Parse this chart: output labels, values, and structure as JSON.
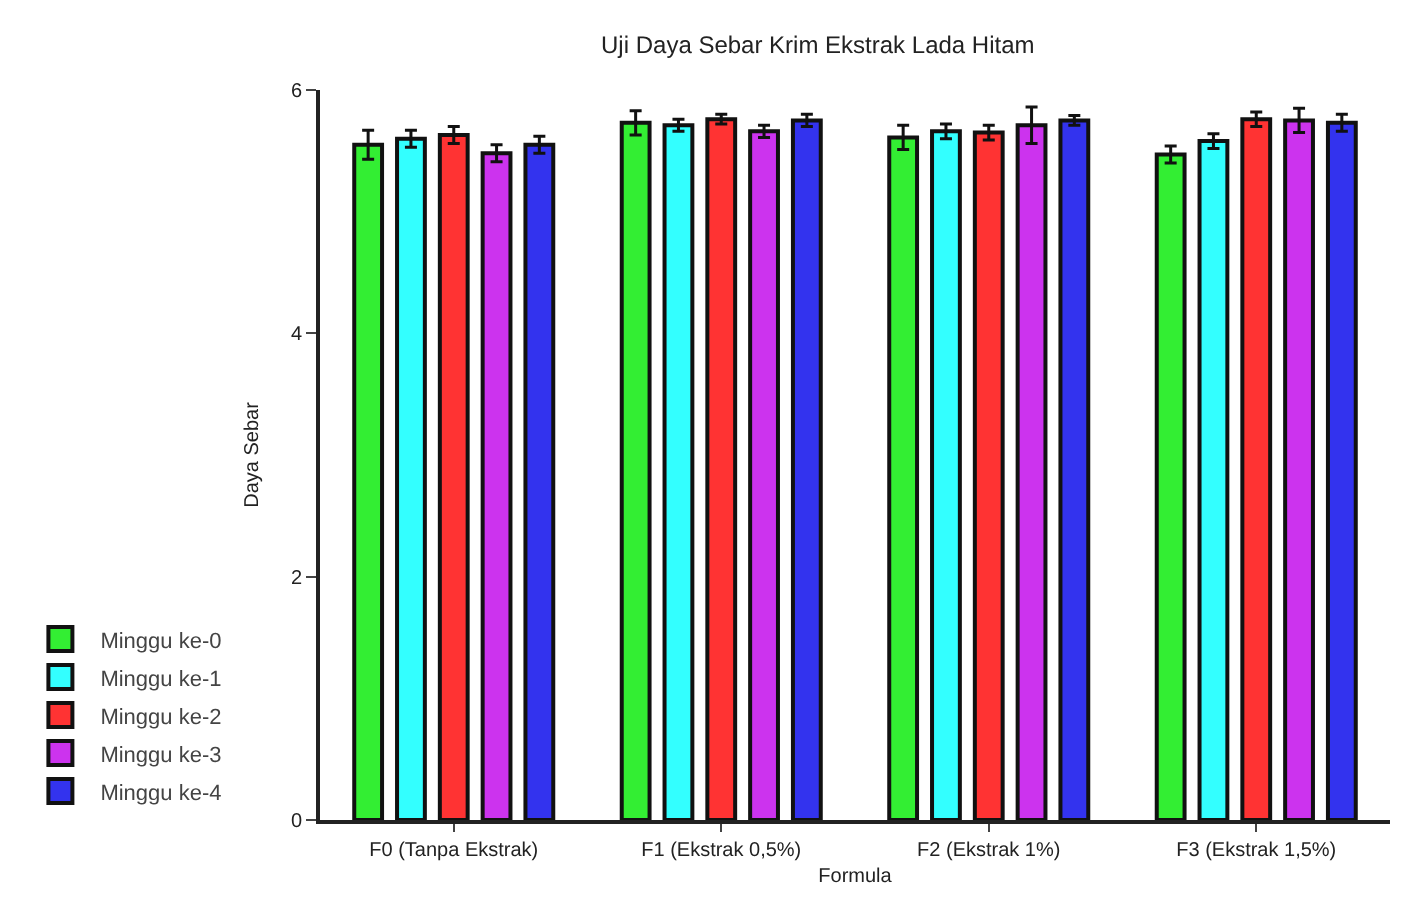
{
  "chart_data": {
    "type": "bar",
    "title": "Uji Daya Sebar Krim Ekstrak Lada Hitam",
    "xlabel": "Formula",
    "ylabel": "Daya Sebar",
    "categories": [
      "F0 (Tanpa Ekstrak)",
      "F1 (Ekstrak 0,5%)",
      "F2 (Ekstrak 1%)",
      "F3 (Ekstrak 1,5%)"
    ],
    "series": [
      {
        "name": "Minggu ke-0",
        "color": "#33ee33",
        "values": [
          5.55,
          5.73,
          5.61,
          5.47
        ],
        "errors": [
          0.12,
          0.1,
          0.1,
          0.07
        ]
      },
      {
        "name": "Minggu ke-1",
        "color": "#33ffff",
        "values": [
          5.6,
          5.71,
          5.66,
          5.58
        ],
        "errors": [
          0.07,
          0.05,
          0.06,
          0.06
        ]
      },
      {
        "name": "Minggu ke-2",
        "color": "#ff3333",
        "values": [
          5.63,
          5.76,
          5.65,
          5.76
        ],
        "errors": [
          0.07,
          0.04,
          0.06,
          0.06
        ]
      },
      {
        "name": "Minggu ke-3",
        "color": "#cc33ee",
        "values": [
          5.48,
          5.66,
          5.71,
          5.75
        ],
        "errors": [
          0.07,
          0.05,
          0.15,
          0.1
        ]
      },
      {
        "name": "Minggu ke-4",
        "color": "#3333ee",
        "values": [
          5.55,
          5.75,
          5.75,
          5.73
        ],
        "errors": [
          0.07,
          0.05,
          0.04,
          0.07
        ]
      }
    ],
    "ylim": [
      0,
      6
    ],
    "yticks": [
      0,
      2,
      4,
      6
    ],
    "grid": false,
    "legend": "left"
  }
}
